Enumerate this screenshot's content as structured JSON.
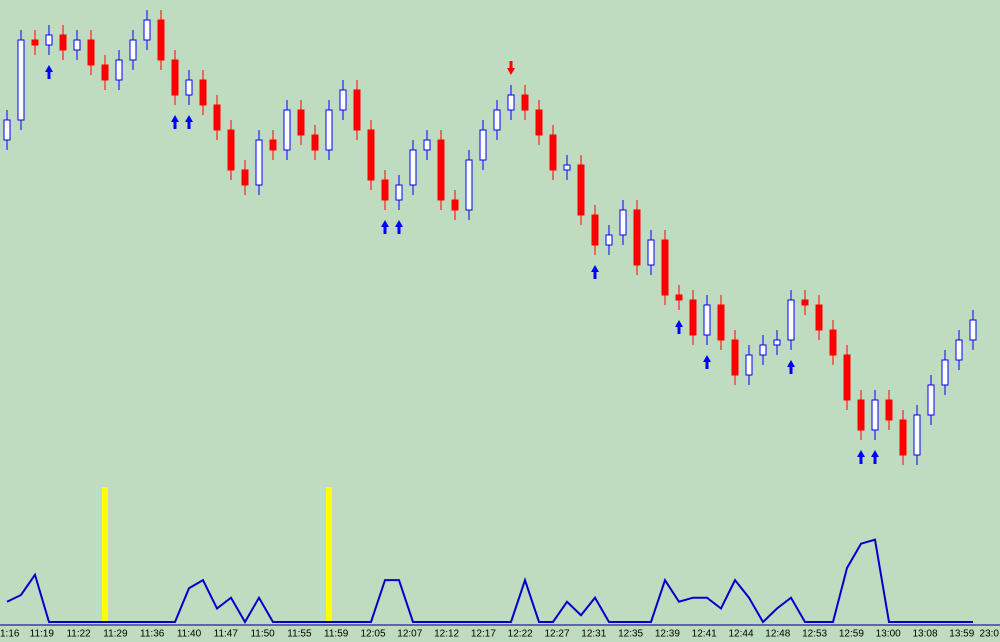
{
  "chart_data": {
    "type": "candlestick",
    "background": "#c0dcc0",
    "up_color": "#ffffff",
    "up_outline": "#0000ff",
    "down_color": "#ff0000",
    "ylim": [
      0,
      100
    ],
    "open": [
      72,
      76,
      92,
      91,
      93,
      90,
      92,
      87,
      84,
      88,
      92,
      96,
      88,
      81,
      84,
      79,
      74,
      66,
      63,
      72,
      70,
      78,
      73,
      70,
      78,
      82,
      74,
      64,
      60,
      63,
      70,
      72,
      60,
      58,
      68,
      74,
      78,
      81,
      78,
      73,
      66,
      67,
      57,
      51,
      53,
      58,
      47,
      52,
      41,
      40,
      33,
      39,
      32,
      25,
      29,
      31,
      32,
      40,
      39,
      34,
      29,
      20,
      14,
      20,
      16,
      9,
      17,
      23,
      28,
      32
    ],
    "high": [
      78,
      94,
      94,
      95,
      95,
      94,
      94,
      89,
      90,
      94,
      98,
      98,
      90,
      86,
      86,
      81,
      76,
      68,
      74,
      74,
      80,
      80,
      75,
      80,
      84,
      84,
      76,
      66,
      65,
      72,
      74,
      74,
      62,
      70,
      76,
      80,
      83,
      83,
      80,
      75,
      69,
      69,
      59,
      55,
      60,
      60,
      54,
      54,
      43,
      42,
      41,
      41,
      34,
      31,
      33,
      34,
      42,
      42,
      41,
      36,
      31,
      22,
      22,
      22,
      18,
      19,
      25,
      30,
      34,
      38
    ],
    "low": [
      70,
      74,
      89,
      89,
      88,
      88,
      85,
      82,
      82,
      86,
      90,
      86,
      79,
      79,
      77,
      72,
      64,
      61,
      61,
      68,
      68,
      71,
      68,
      68,
      76,
      72,
      62,
      58,
      58,
      61,
      68,
      58,
      56,
      56,
      66,
      72,
      76,
      76,
      71,
      64,
      64,
      55,
      49,
      49,
      51,
      45,
      45,
      39,
      38,
      31,
      31,
      30,
      23,
      23,
      27,
      29,
      30,
      37,
      32,
      27,
      18,
      12,
      12,
      14,
      7,
      7,
      15,
      21,
      26,
      30
    ],
    "close": [
      76,
      92,
      91,
      93,
      90,
      92,
      87,
      84,
      88,
      92,
      96,
      88,
      81,
      84,
      79,
      74,
      66,
      63,
      72,
      70,
      78,
      73,
      70,
      78,
      82,
      74,
      64,
      60,
      63,
      70,
      72,
      60,
      58,
      68,
      74,
      78,
      81,
      78,
      73,
      66,
      67,
      57,
      51,
      53,
      58,
      47,
      52,
      41,
      40,
      33,
      39,
      32,
      25,
      29,
      31,
      32,
      40,
      39,
      34,
      29,
      20,
      14,
      20,
      16,
      9,
      17,
      23,
      28,
      32,
      36
    ],
    "signals": {
      "up": [
        3,
        12,
        13,
        27,
        28,
        42,
        48,
        50,
        56,
        61,
        62
      ],
      "down": [
        36
      ],
      "up_color": "#0000ff",
      "down_color": "#ff0000"
    },
    "indicator": {
      "color": "#0000cc",
      "ylim": [
        0,
        100
      ],
      "values": [
        15,
        20,
        35,
        0,
        0,
        0,
        0,
        0,
        0,
        0,
        0,
        0,
        0,
        25,
        31,
        10,
        18,
        0,
        18,
        0,
        0,
        0,
        0,
        0,
        0,
        0,
        0,
        31,
        31,
        0,
        0,
        0,
        0,
        0,
        0,
        0,
        0,
        31,
        0,
        0,
        15,
        5,
        18,
        0,
        0,
        0,
        0,
        31,
        15,
        18,
        18,
        10,
        31,
        18,
        0,
        10,
        18,
        0,
        0,
        0,
        40,
        58,
        61,
        0,
        0,
        0,
        0,
        0,
        0,
        0
      ],
      "highlight": {
        "color": "#ffff00",
        "at": [
          7,
          23
        ],
        "values": [
          100,
          100
        ]
      }
    },
    "time_labels": [
      "1:16",
      "11:19",
      "11:22",
      "11:29",
      "11:36",
      "11:40",
      "11:47",
      "11:50",
      "11:55",
      "11:59",
      "12:05",
      "12:07",
      "12:12",
      "12:17",
      "12:22",
      "12:27",
      "12:31",
      "12:35",
      "12:39",
      "12:41",
      "12:44",
      "12:48",
      "12:53",
      "12:59",
      "13:00",
      "13:08",
      "13:59",
      "23:0"
    ]
  }
}
